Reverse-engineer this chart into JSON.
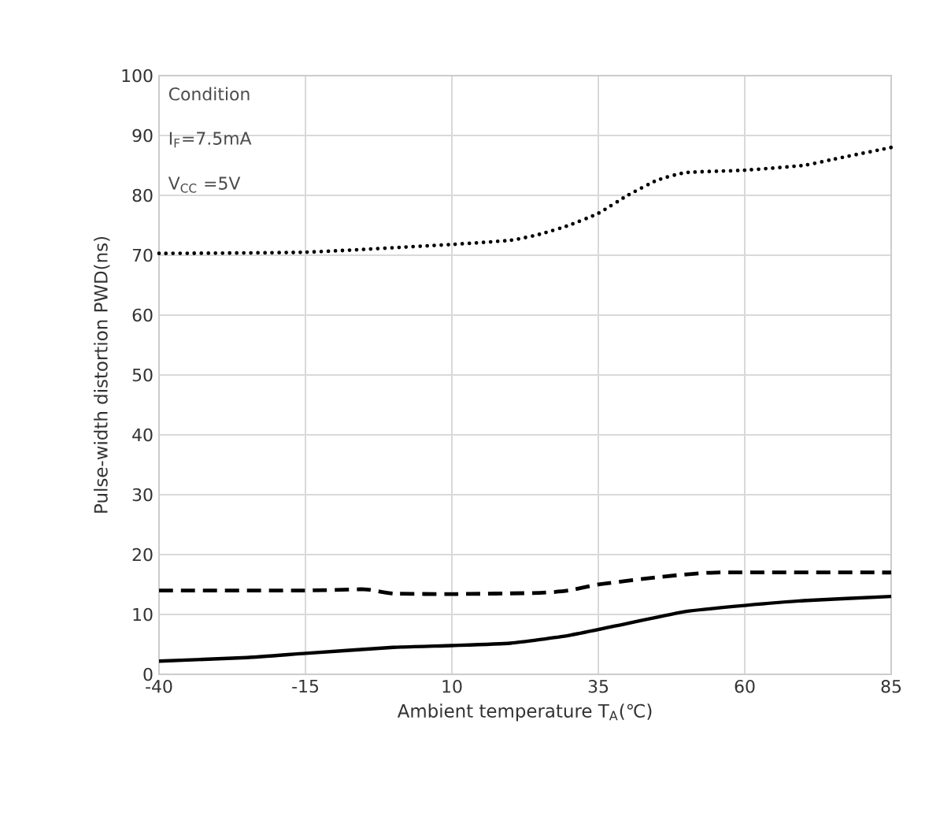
{
  "chart_data": {
    "type": "line",
    "xlabel": "Ambient temperature T$_{A}$(℃)",
    "ylabel": "Pulse-width distortion PWD(ns)",
    "xlim": [
      -40,
      85
    ],
    "xticks": [
      -40,
      -15,
      10,
      35,
      60,
      85
    ],
    "ylim": [
      0,
      100
    ],
    "yticks": [
      0,
      10,
      20,
      30,
      40,
      50,
      60,
      70,
      80,
      90,
      100
    ],
    "grid": true,
    "marker": "none",
    "annotations": [
      "Condition",
      "I$_{F}$=7.5mA",
      "V$_{CC}$ =5V"
    ],
    "series": [
      {
        "color": "#000000",
        "line_style": "dotted",
        "x": [
          -40,
          -15,
          10,
          20,
          25,
          30,
          35,
          40,
          45,
          50,
          60,
          70,
          75,
          85
        ],
        "values": [
          70.3,
          70.5,
          71.8,
          72.5,
          73.5,
          75,
          77,
          80,
          82.5,
          83.8,
          84.2,
          85,
          86,
          88
        ]
      },
      {
        "color": "#000000",
        "line_style": "dashed",
        "x": [
          -40,
          -15,
          -5,
          0,
          10,
          25,
          30,
          35,
          45,
          55,
          85
        ],
        "values": [
          14,
          14,
          14.2,
          13.5,
          13.4,
          13.6,
          14,
          15,
          16.2,
          17,
          17
        ]
      },
      {
        "color": "#000000",
        "line_style": "solid",
        "x": [
          -40,
          -25,
          -15,
          0,
          10,
          20,
          30,
          40,
          50,
          60,
          70,
          85
        ],
        "values": [
          2.2,
          2.8,
          3.5,
          4.5,
          4.8,
          5.2,
          6.5,
          8.5,
          10.5,
          11.5,
          12.3,
          13
        ]
      }
    ]
  }
}
